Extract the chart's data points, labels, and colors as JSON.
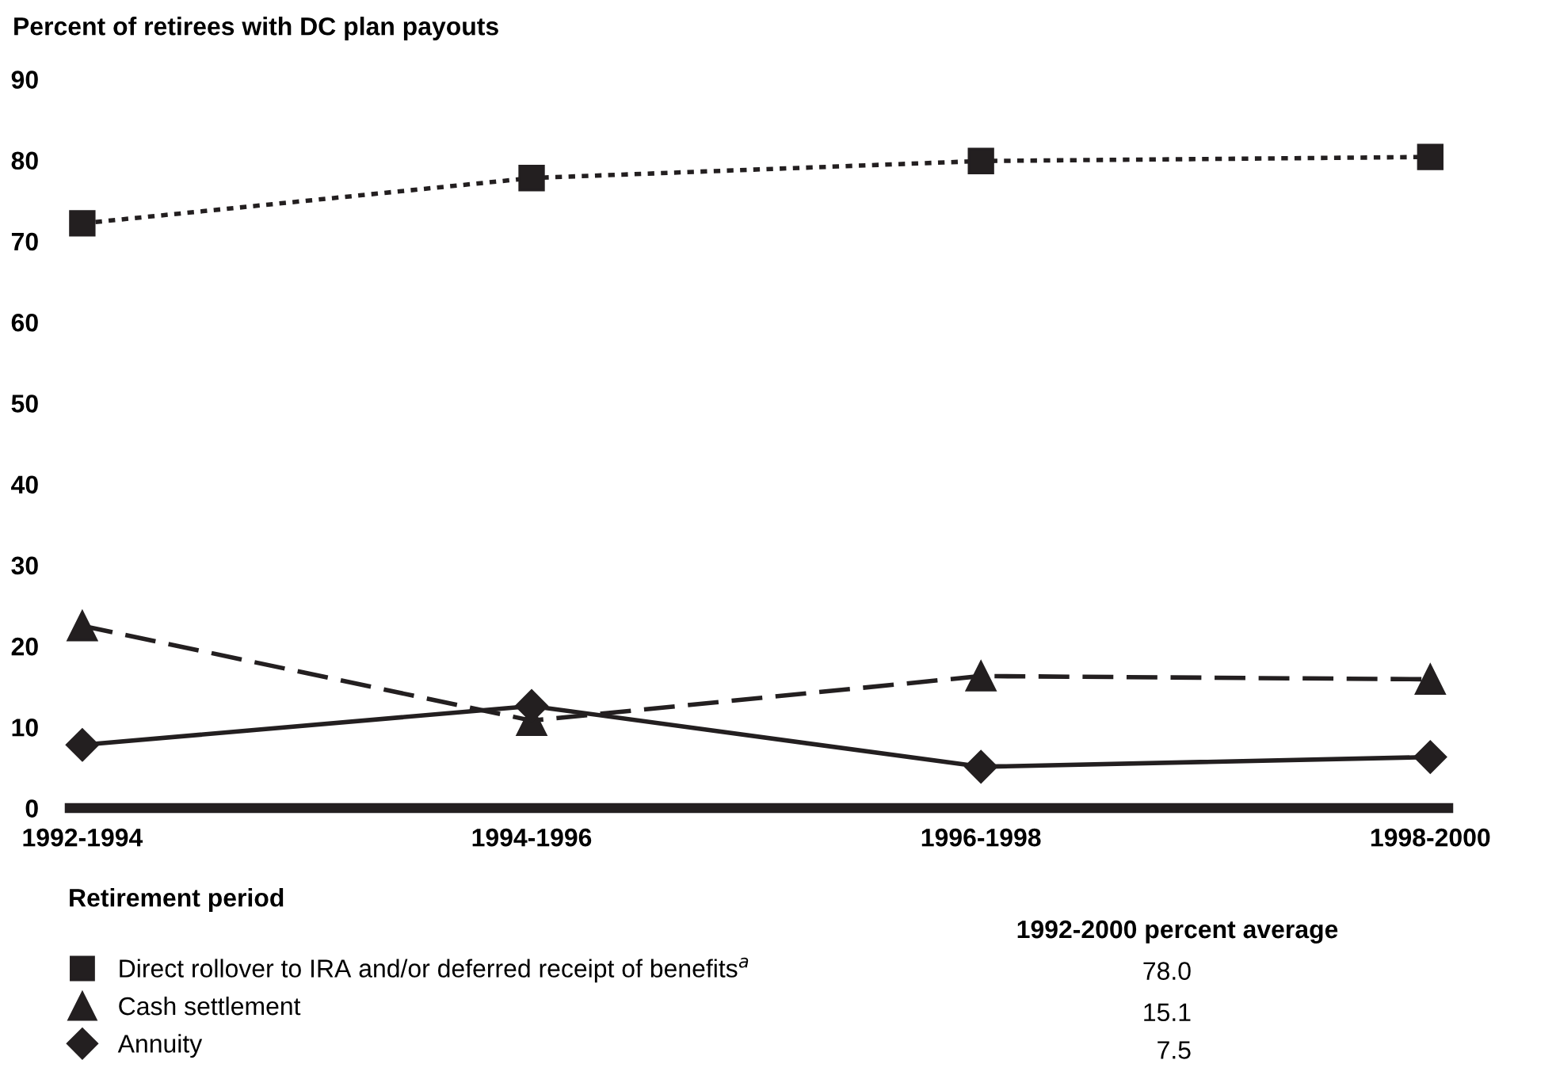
{
  "chart_data": {
    "type": "line",
    "title": "Percent of retirees with DC plan payouts",
    "xlabel": "Retirement period",
    "categories": [
      "1992-1994",
      "1994-1996",
      "1996-1998",
      "1998-2000"
    ],
    "series": [
      {
        "name": "Direct rollover to IRA and/or deferred receipt of benefits$^{a}$",
        "color": "#231f20",
        "marker": "square",
        "line_style": "dotted",
        "values": [
          72.2,
          77.8,
          79.9,
          80.4
        ]
      },
      {
        "name": "Cash settlement",
        "color": "#231f20",
        "marker": "triangle",
        "line_style": "dashed",
        "values": [
          22.5,
          10.8,
          16.3,
          15.9
        ]
      },
      {
        "name": "Annuity",
        "color": "#231f20",
        "marker": "diamond",
        "line_style": "solid",
        "values": [
          7.8,
          12.6,
          5.1,
          6.3
        ]
      }
    ],
    "ylim": [
      0,
      90
    ],
    "yticks": [
      0,
      10,
      20,
      30,
      40,
      50,
      60,
      70,
      80,
      90
    ],
    "grid": false,
    "legend": "bottom",
    "annotations": [
      "1992-2000 percent average",
      "78.0",
      "15.1",
      "7.5"
    ]
  }
}
